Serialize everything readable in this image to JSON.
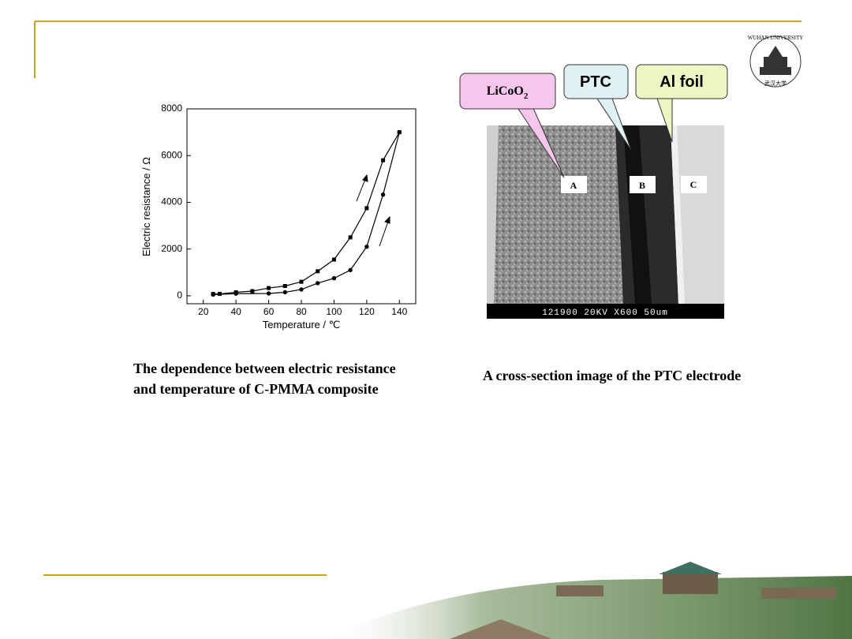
{
  "chart_data": {
    "type": "line",
    "xlabel": "Temperature / ℃",
    "ylabel": "Electric resistance / Ω",
    "xlim": [
      10,
      150
    ],
    "xticks": [
      20,
      40,
      60,
      80,
      100,
      120,
      140
    ],
    "ylim": [
      -340,
      8000
    ],
    "yticks": [
      0,
      2000,
      4000,
      6000,
      8000
    ],
    "grid": false,
    "series": [
      {
        "color": "#000000",
        "marker": "square",
        "x": [
          26,
          30,
          40,
          50,
          60,
          70,
          80,
          90,
          100,
          110,
          120,
          130,
          140
        ],
        "values": [
          80,
          80,
          150,
          200,
          330,
          420,
          600,
          1050,
          1550,
          2500,
          3750,
          5800,
          7000
        ]
      },
      {
        "color": "#000000",
        "marker": "circle",
        "x": [
          26,
          40,
          60,
          70,
          80,
          90,
          100,
          110,
          120,
          130,
          140
        ],
        "values": [
          50,
          90,
          100,
          150,
          270,
          540,
          750,
          1100,
          2100,
          4330,
          7000
        ]
      }
    ]
  },
  "image": {
    "callouts": [
      {
        "label": "LiCoO",
        "subscript": "2"
      },
      {
        "label": "PTC"
      },
      {
        "label": "Al foil"
      }
    ],
    "regions": [
      "A",
      "B",
      "C"
    ],
    "scale_bar": "121900 20KV X600 50um"
  },
  "captions": {
    "left": [
      "The dependence between electric resistance",
      "and temperature of C-PMMA composite"
    ],
    "right": "A cross-section image of the PTC electrode"
  },
  "logo": {
    "name": "WUHAN UNIVERSITY",
    "chinese": "武汉大学"
  }
}
